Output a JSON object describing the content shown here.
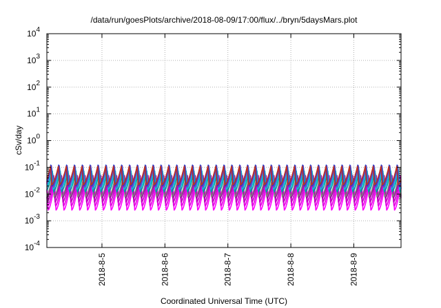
{
  "chart_data": {
    "type": "line",
    "title": "/data/run/goesPlots/archive/2018-08-09/17:00/flux/../bryn/5daysMars.plot",
    "xlabel": "Coordinated Universal Time (UTC)",
    "ylabel": "cSv/day",
    "yscale": "log",
    "ylim": [
      0.0001,
      10000
    ],
    "xlim": [
      "2018-08-04 03:00",
      "2018-08-09 18:00"
    ],
    "grid": true,
    "x_ticks": [
      "2018-8-5",
      "2018-8-6",
      "2018-8-7",
      "2018-8-8",
      "2018-8-9"
    ],
    "y_ticks": [
      {
        "base": "10",
        "exp": "-4",
        "value": 0.0001
      },
      {
        "base": "10",
        "exp": "-3",
        "value": 0.001
      },
      {
        "base": "10",
        "exp": "-2",
        "value": 0.01
      },
      {
        "base": "10",
        "exp": "-1",
        "value": 0.1
      },
      {
        "base": "10",
        "exp": "0",
        "value": 1
      },
      {
        "base": "10",
        "exp": "1",
        "value": 10
      },
      {
        "base": "10",
        "exp": "2",
        "value": 100
      },
      {
        "base": "10",
        "exp": "3",
        "value": 1000
      },
      {
        "base": "10",
        "exp": "4",
        "value": 10000
      }
    ],
    "periodic_pattern": {
      "period_hours": 3,
      "note_values_per_cycle": "each series rises from its minimum to its peak once per cycle, then drops abruptly"
    },
    "series": [
      {
        "color": "#ff00ff",
        "peak": 0.03,
        "min": 0.0025,
        "phase": 0.0
      },
      {
        "color": "#e000e0",
        "peak": 0.04,
        "min": 0.0035,
        "phase": 0.06
      },
      {
        "color": "#c000c0",
        "peak": 0.05,
        "min": 0.005,
        "phase": 0.12
      },
      {
        "color": "#a000a0",
        "peak": 0.055,
        "min": 0.007,
        "phase": 0.18
      },
      {
        "color": "#808080",
        "peak": 0.06,
        "min": 0.008,
        "phase": 0.24
      },
      {
        "color": "#00a0a0",
        "peak": 0.08,
        "min": 0.012,
        "phase": 0.3
      },
      {
        "color": "#00c0e0",
        "peak": 0.1,
        "min": 0.015,
        "phase": 0.36
      },
      {
        "color": "#8040c0",
        "peak": 0.12,
        "min": 0.018,
        "phase": 0.42
      },
      {
        "color": "#2040d0",
        "peak": 0.13,
        "min": 0.02,
        "phase": 0.48
      },
      {
        "color": "#c03020",
        "peak": 0.11,
        "min": 0.022,
        "phase": 0.54
      }
    ]
  }
}
